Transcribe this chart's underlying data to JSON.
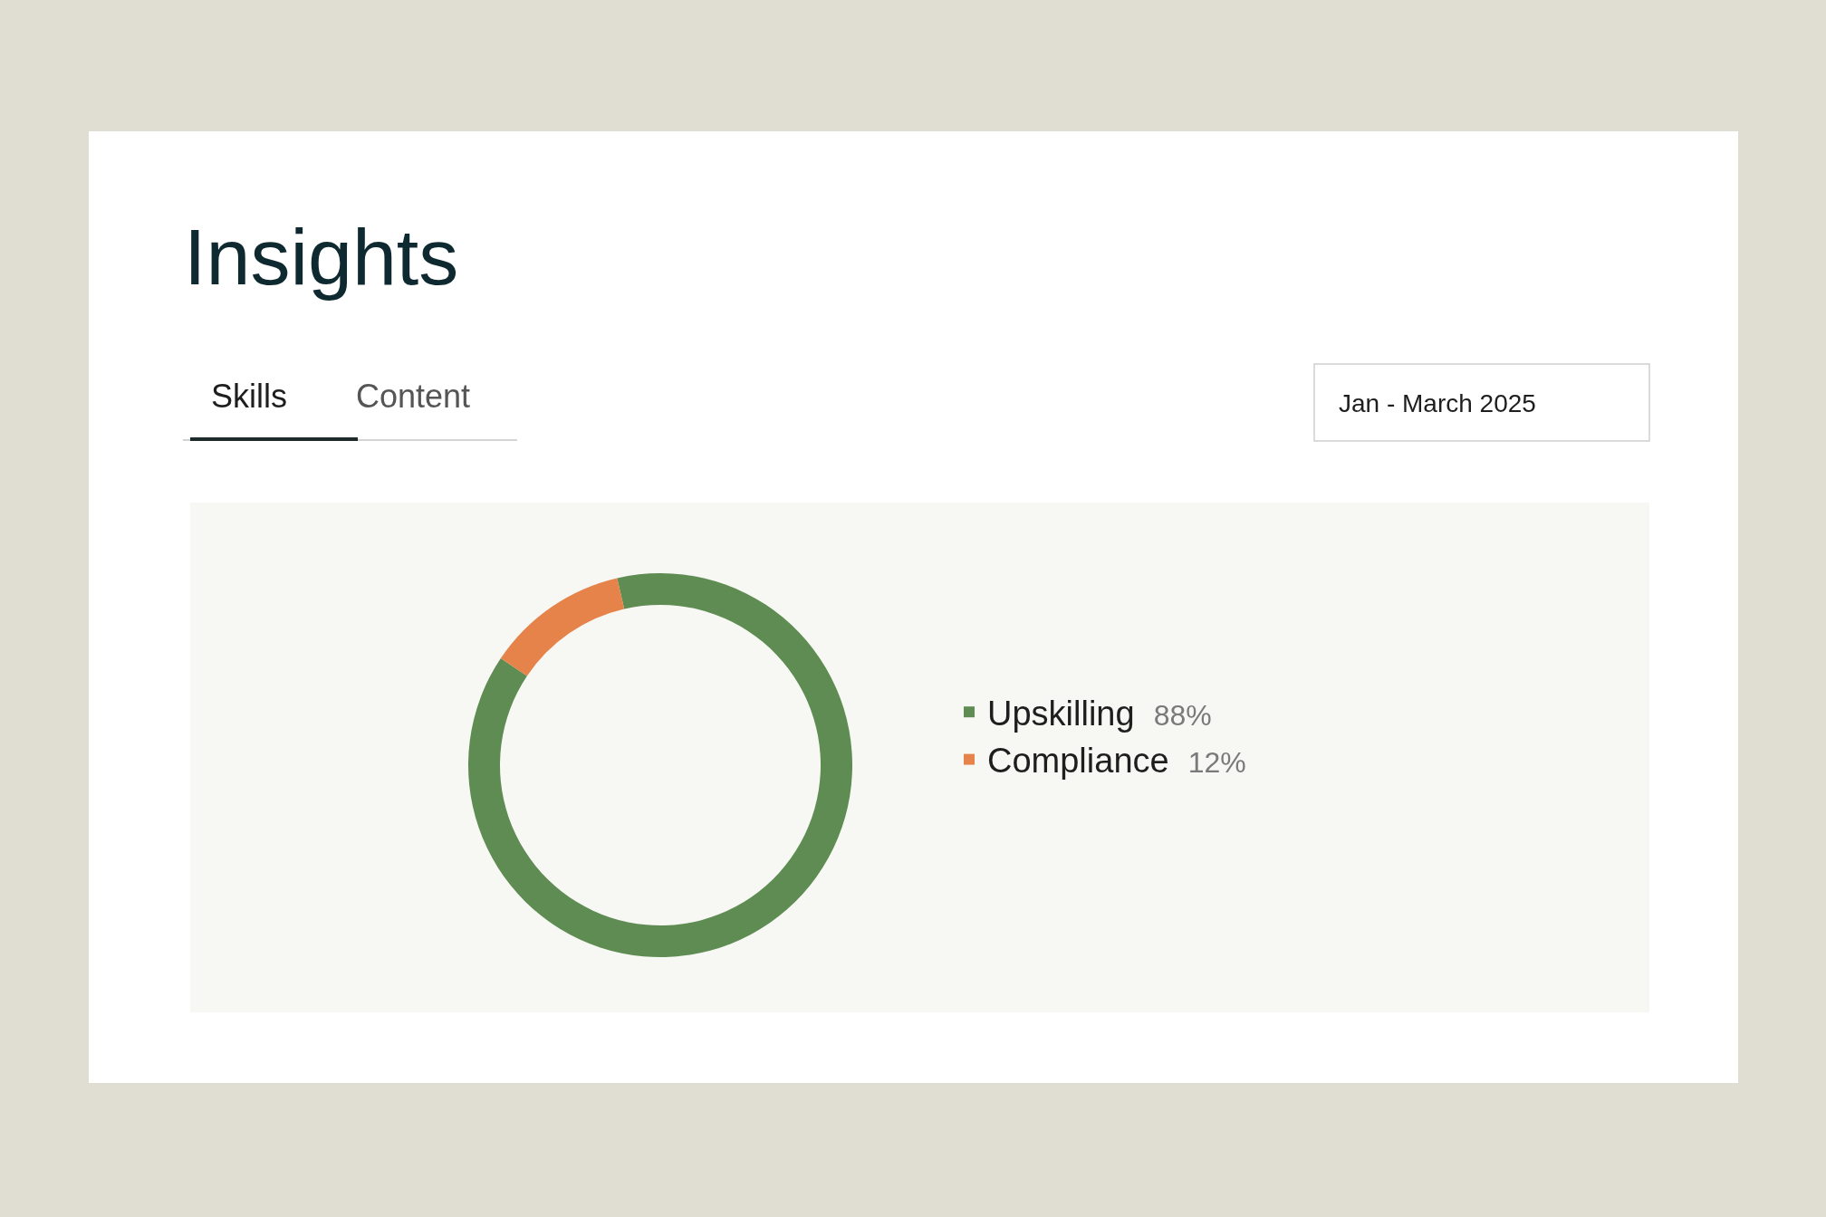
{
  "chart_data": {
    "type": "donut",
    "title": "Insights",
    "categories": [
      "Upskilling",
      "Compliance"
    ],
    "values": [
      88,
      12
    ],
    "colors": [
      "#5e8c52",
      "#e6834a"
    ],
    "value_labels": [
      "88%",
      "12%"
    ],
    "legend": "right",
    "annotations": [
      "Skills",
      "Content",
      "Jan - March 2025"
    ]
  }
}
